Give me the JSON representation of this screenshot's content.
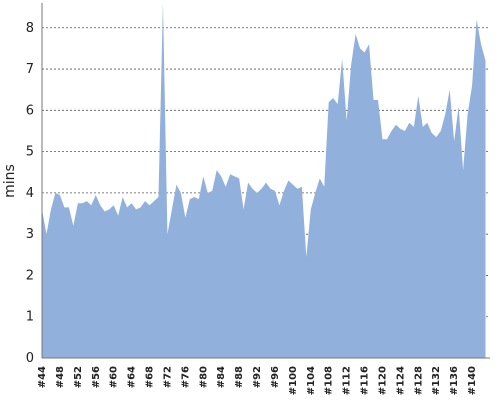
{
  "chart_data": {
    "type": "area",
    "y_label": "mins",
    "color": "#91b1dc",
    "categories": [
      "#44",
      null,
      null,
      null,
      "#48",
      null,
      null,
      null,
      "#52",
      null,
      null,
      null,
      "#56",
      null,
      null,
      null,
      "#60",
      null,
      null,
      null,
      "#64",
      null,
      null,
      null,
      "#68",
      null,
      null,
      null,
      "#72",
      null,
      null,
      null,
      "#76",
      null,
      null,
      null,
      "#80",
      null,
      null,
      null,
      "#84",
      null,
      null,
      null,
      "#88",
      null,
      null,
      null,
      "#92",
      null,
      null,
      null,
      "#96",
      null,
      null,
      null,
      "#100",
      null,
      null,
      null,
      "#104",
      null,
      null,
      null,
      "#108",
      null,
      null,
      null,
      "#112",
      null,
      null,
      null,
      "#116",
      null,
      null,
      null,
      "#120",
      null,
      null,
      null,
      "#124",
      null,
      null,
      null,
      "#128",
      null,
      null,
      null,
      "#132",
      null,
      null,
      null,
      "#136",
      null,
      null,
      null,
      "#140",
      null,
      null,
      null
    ],
    "values": [
      3.6,
      3.0,
      3.6,
      4.0,
      3.95,
      3.65,
      3.65,
      3.2,
      3.75,
      3.75,
      3.8,
      3.7,
      3.95,
      3.7,
      3.55,
      3.6,
      3.7,
      3.45,
      3.9,
      3.65,
      3.75,
      3.6,
      3.65,
      3.8,
      3.7,
      3.8,
      3.9,
      8.6,
      3.0,
      3.6,
      4.2,
      4.0,
      3.4,
      3.85,
      3.9,
      3.85,
      4.4,
      4.0,
      4.05,
      4.55,
      4.4,
      4.15,
      4.45,
      4.4,
      4.35,
      3.6,
      4.25,
      4.1,
      4.0,
      4.1,
      4.25,
      4.1,
      4.05,
      3.7,
      4.05,
      4.3,
      4.2,
      4.1,
      4.15,
      2.45,
      3.6,
      4.0,
      4.35,
      4.15,
      6.2,
      6.3,
      6.15,
      7.25,
      5.75,
      7.1,
      7.85,
      7.5,
      7.4,
      7.6,
      6.25,
      6.25,
      5.3,
      5.3,
      5.5,
      5.65,
      5.55,
      5.5,
      5.7,
      5.6,
      6.35,
      5.6,
      5.7,
      5.45,
      5.35,
      5.5,
      5.9,
      6.5,
      5.25,
      6.1,
      4.55,
      5.9,
      6.6,
      8.2,
      7.6,
      7.2
    ],
    "ylim": [
      0,
      8.6
    ],
    "yticks": [
      0,
      1,
      2,
      3,
      4,
      5,
      6,
      7,
      8
    ],
    "grid": true
  }
}
